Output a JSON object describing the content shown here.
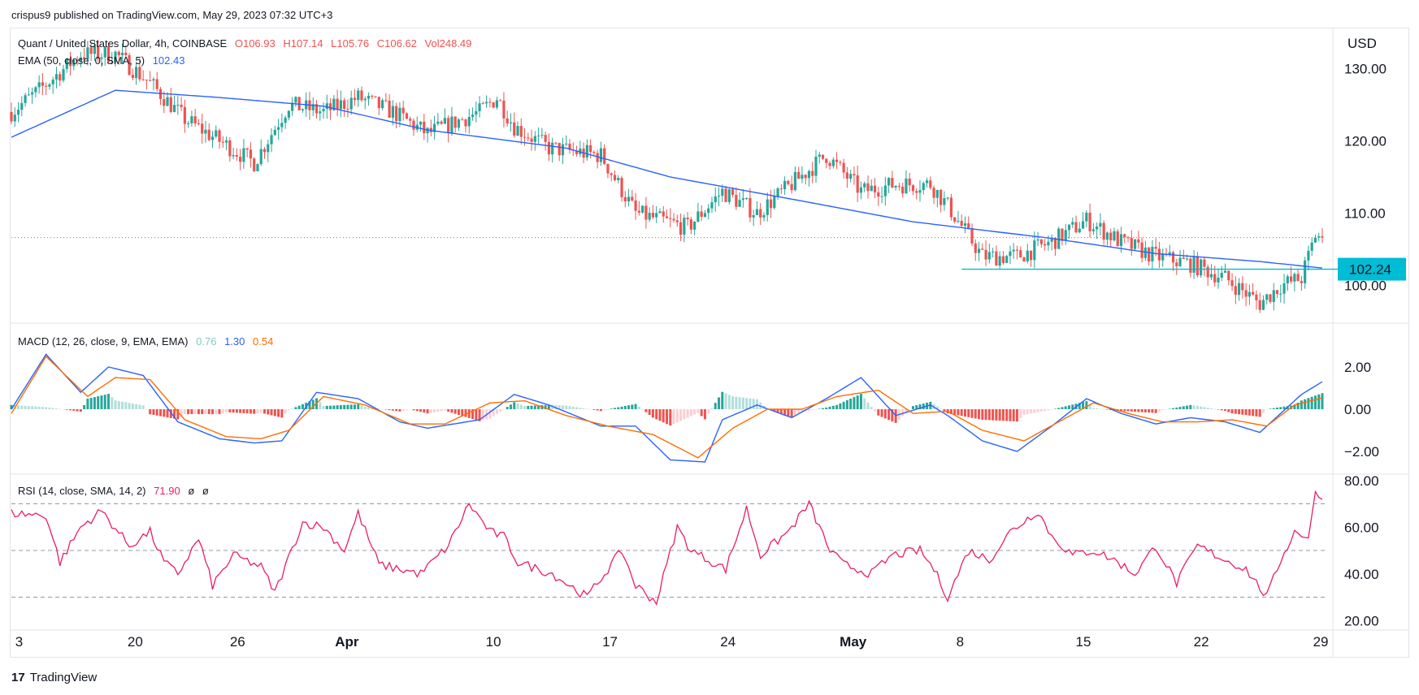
{
  "header": {
    "published": "crispus9 published on TradingView.com, May 29, 2023 07:32 UTC+3"
  },
  "footer": {
    "brand": "TradingView",
    "logo_mark": "17"
  },
  "colors": {
    "up": "#26a69a",
    "down": "#ef5350",
    "ema": "#2962ff",
    "macd": "#2962ff",
    "signal": "#ff6d00",
    "rsi": "#e91e63",
    "level": "#00bcd4",
    "grid": "#f0f3fa"
  },
  "price_pane": {
    "symbol": "Quant / United States Dollar, 4h, COINBASE",
    "o": "O106.93",
    "h": "H107.14",
    "l": "L105.76",
    "c": "C106.62",
    "vol": "Vol248.49",
    "ema_label": "EMA (50, close, 0, SMA, 5)",
    "ema_value": "102.43",
    "currency": "USD",
    "ticks": [
      "130.00",
      "120.00",
      "110.00",
      "100.00"
    ],
    "level_label": "102.24"
  },
  "macd_pane": {
    "label": "MACD (12, 26, close, 9, EMA, EMA)",
    "hist": "0.76",
    "macd": "1.30",
    "signal": "0.54",
    "ticks": [
      "2.00",
      "0.00",
      "−2.00"
    ]
  },
  "rsi_pane": {
    "label": "RSI (14, close, SMA, 14, 2)",
    "value": "71.90",
    "n1": "ø",
    "n2": "ø",
    "ticks": [
      "80.00",
      "60.00",
      "40.00",
      "20.00"
    ]
  },
  "x_axis": [
    "3",
    "20",
    "26",
    "Apr",
    "10",
    "17",
    "24",
    "May",
    "8",
    "15",
    "22",
    "29"
  ],
  "chart_data": {
    "type": "candlestick",
    "timeframe": "4h",
    "x_range": [
      "2023-03-13",
      "2023-05-29"
    ],
    "price_ylim": [
      95,
      135
    ],
    "ema_key_points": [
      [
        0,
        120.5
      ],
      [
        30,
        127
      ],
      [
        60,
        126
      ],
      [
        90,
        124.8
      ],
      [
        120,
        121.5
      ],
      [
        160,
        119
      ],
      [
        190,
        115
      ],
      [
        230,
        111.5
      ],
      [
        260,
        108.8
      ],
      [
        300,
        106.5
      ],
      [
        330,
        104.4
      ],
      [
        360,
        103.3
      ],
      [
        378,
        102.4
      ]
    ],
    "price_key_points": [
      [
        0,
        124
      ],
      [
        8,
        127
      ],
      [
        20,
        132
      ],
      [
        30,
        132
      ],
      [
        40,
        128
      ],
      [
        50,
        123
      ],
      [
        60,
        120
      ],
      [
        70,
        117
      ],
      [
        80,
        125
      ],
      [
        90,
        124
      ],
      [
        100,
        126
      ],
      [
        110,
        124
      ],
      [
        120,
        121
      ],
      [
        135,
        124
      ],
      [
        140,
        126
      ],
      [
        145,
        122
      ],
      [
        155,
        119
      ],
      [
        170,
        118
      ],
      [
        180,
        110
      ],
      [
        195,
        108
      ],
      [
        205,
        113
      ],
      [
        215,
        110
      ],
      [
        225,
        114
      ],
      [
        235,
        118
      ],
      [
        245,
        113
      ],
      [
        255,
        114
      ],
      [
        265,
        114
      ],
      [
        270,
        111
      ],
      [
        280,
        104
      ],
      [
        290,
        104
      ],
      [
        300,
        106
      ],
      [
        310,
        109
      ],
      [
        320,
        106
      ],
      [
        330,
        104
      ],
      [
        340,
        103
      ],
      [
        350,
        101
      ],
      [
        360,
        97.5
      ],
      [
        366,
        100
      ],
      [
        372,
        101
      ],
      [
        376,
        107
      ],
      [
        378,
        106.6
      ]
    ],
    "last_close": 106.62,
    "horizontal_level": 102.24,
    "dotted_level": 106.62,
    "macd_ylim": [
      -3,
      4
    ],
    "macd_key_points": [
      [
        0,
        0
      ],
      [
        10,
        2.6
      ],
      [
        20,
        0.8
      ],
      [
        28,
        2
      ],
      [
        38,
        1.6
      ],
      [
        48,
        -0.6
      ],
      [
        60,
        -1.4
      ],
      [
        70,
        -1.6
      ],
      [
        78,
        -1.5
      ],
      [
        88,
        0.8
      ],
      [
        100,
        0.5
      ],
      [
        112,
        -0.6
      ],
      [
        120,
        -0.9
      ],
      [
        135,
        -0.5
      ],
      [
        145,
        0.7
      ],
      [
        155,
        0.2
      ],
      [
        170,
        -0.8
      ],
      [
        180,
        -0.8
      ],
      [
        190,
        -2.4
      ],
      [
        200,
        -2.5
      ],
      [
        205,
        -0.5
      ],
      [
        215,
        0.2
      ],
      [
        225,
        -0.4
      ],
      [
        235,
        0.5
      ],
      [
        245,
        1.5
      ],
      [
        255,
        -0.3
      ],
      [
        265,
        0.2
      ],
      [
        270,
        -0.3
      ],
      [
        280,
        -1.5
      ],
      [
        290,
        -2
      ],
      [
        300,
        -0.8
      ],
      [
        310,
        0.5
      ],
      [
        320,
        -0.2
      ],
      [
        330,
        -0.7
      ],
      [
        340,
        -0.4
      ],
      [
        350,
        -0.6
      ],
      [
        360,
        -1.1
      ],
      [
        368,
        0.1
      ],
      [
        372,
        0.7
      ],
      [
        378,
        1.3
      ]
    ],
    "signal_key_points": [
      [
        0,
        -0.2
      ],
      [
        10,
        2.5
      ],
      [
        22,
        0.6
      ],
      [
        30,
        1.5
      ],
      [
        40,
        1.4
      ],
      [
        50,
        -0.5
      ],
      [
        62,
        -1.3
      ],
      [
        72,
        -1.4
      ],
      [
        80,
        -1
      ],
      [
        90,
        0.6
      ],
      [
        102,
        0.2
      ],
      [
        115,
        -0.7
      ],
      [
        125,
        -0.7
      ],
      [
        138,
        0.3
      ],
      [
        148,
        0.4
      ],
      [
        160,
        -0.3
      ],
      [
        172,
        -0.8
      ],
      [
        185,
        -1.2
      ],
      [
        198,
        -2.3
      ],
      [
        208,
        -0.9
      ],
      [
        218,
        0
      ],
      [
        228,
        0
      ],
      [
        238,
        0.6
      ],
      [
        250,
        0.9
      ],
      [
        260,
        -0.2
      ],
      [
        270,
        -0.1
      ],
      [
        280,
        -1
      ],
      [
        292,
        -1.5
      ],
      [
        302,
        -0.6
      ],
      [
        312,
        0.3
      ],
      [
        322,
        -0.2
      ],
      [
        332,
        -0.6
      ],
      [
        342,
        -0.6
      ],
      [
        352,
        -0.5
      ],
      [
        362,
        -0.8
      ],
      [
        370,
        0.2
      ],
      [
        378,
        0.54
      ]
    ],
    "rsi_ylim": [
      18,
      82
    ],
    "rsi_key_points": [
      [
        0,
        66
      ],
      [
        10,
        65
      ],
      [
        14,
        45
      ],
      [
        20,
        60
      ],
      [
        26,
        67
      ],
      [
        34,
        52
      ],
      [
        40,
        58
      ],
      [
        44,
        45
      ],
      [
        48,
        40
      ],
      [
        54,
        55
      ],
      [
        58,
        35
      ],
      [
        64,
        48
      ],
      [
        72,
        43
      ],
      [
        76,
        32
      ],
      [
        84,
        62
      ],
      [
        90,
        60
      ],
      [
        96,
        50
      ],
      [
        100,
        66
      ],
      [
        106,
        44
      ],
      [
        112,
        42
      ],
      [
        118,
        40
      ],
      [
        126,
        52
      ],
      [
        132,
        70
      ],
      [
        138,
        58
      ],
      [
        142,
        56
      ],
      [
        146,
        45
      ],
      [
        156,
        40
      ],
      [
        166,
        30
      ],
      [
        176,
        50
      ],
      [
        180,
        35
      ],
      [
        186,
        28
      ],
      [
        192,
        60
      ],
      [
        196,
        50
      ],
      [
        206,
        42
      ],
      [
        212,
        68
      ],
      [
        216,
        48
      ],
      [
        224,
        58
      ],
      [
        230,
        70
      ],
      [
        236,
        50
      ],
      [
        240,
        44
      ],
      [
        248,
        40
      ],
      [
        254,
        48
      ],
      [
        262,
        50
      ],
      [
        266,
        42
      ],
      [
        270,
        30
      ],
      [
        276,
        50
      ],
      [
        282,
        46
      ],
      [
        288,
        58
      ],
      [
        296,
        67
      ],
      [
        300,
        56
      ],
      [
        306,
        48
      ],
      [
        312,
        50
      ],
      [
        318,
        46
      ],
      [
        324,
        40
      ],
      [
        330,
        52
      ],
      [
        336,
        36
      ],
      [
        342,
        52
      ],
      [
        350,
        46
      ],
      [
        356,
        42
      ],
      [
        362,
        30
      ],
      [
        366,
        46
      ],
      [
        370,
        58
      ],
      [
        374,
        56
      ],
      [
        376,
        74
      ],
      [
        378,
        71.9
      ]
    ],
    "rsi_levels": [
      70,
      50,
      30
    ]
  }
}
